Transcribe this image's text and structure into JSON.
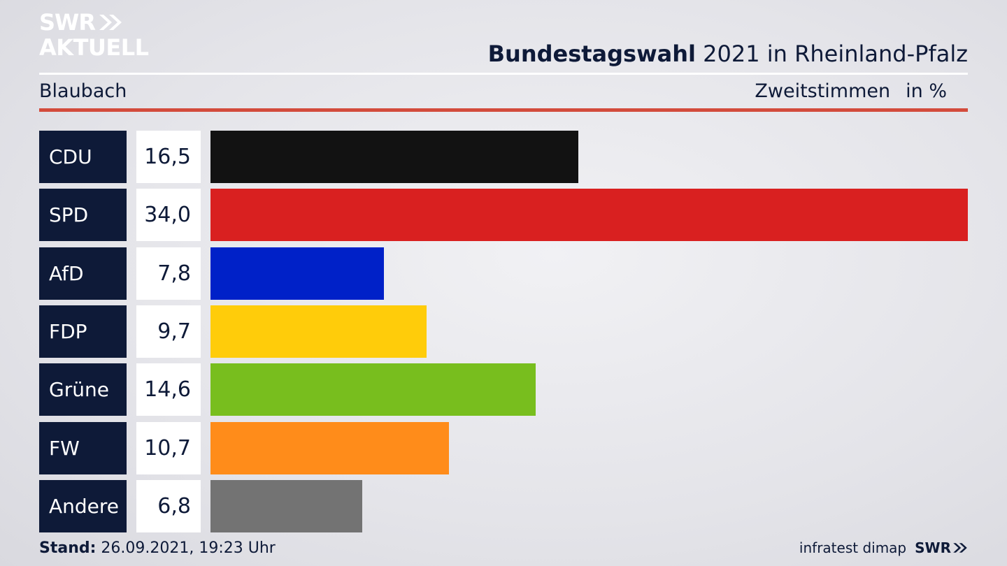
{
  "brand": {
    "logo_line1": "SWR",
    "logo_line2": "AKTUELL",
    "footer_logo": "SWR"
  },
  "header": {
    "title_bold": "Bundestagswahl",
    "title_rest": " 2021 in Rheinland-Pfalz"
  },
  "subheader": {
    "region": "Blaubach",
    "measure": "Zweitstimmen",
    "unit": "in %"
  },
  "footer": {
    "stand_label": "Stand:",
    "stand_value": " 26.09.2021, 19:23 Uhr",
    "source": "infratest dimap"
  },
  "chart_data": {
    "type": "bar",
    "orientation": "horizontal",
    "title": "Bundestagswahl 2021 in Rheinland-Pfalz",
    "categories": [
      "CDU",
      "SPD",
      "AfD",
      "FDP",
      "Grüne",
      "FW",
      "Andere"
    ],
    "values": [
      16.5,
      34.0,
      7.8,
      9.7,
      14.6,
      10.7,
      6.8
    ],
    "labels": [
      "16,5",
      "34,0",
      "7,8",
      "9,7",
      "14,6",
      "10,7",
      "6,8"
    ],
    "colors": [
      "#121212",
      "#d92020",
      "#0021c8",
      "#ffcc0a",
      "#78be1e",
      "#ff8c1a",
      "#737373"
    ],
    "xlim": [
      0,
      34.0
    ]
  }
}
